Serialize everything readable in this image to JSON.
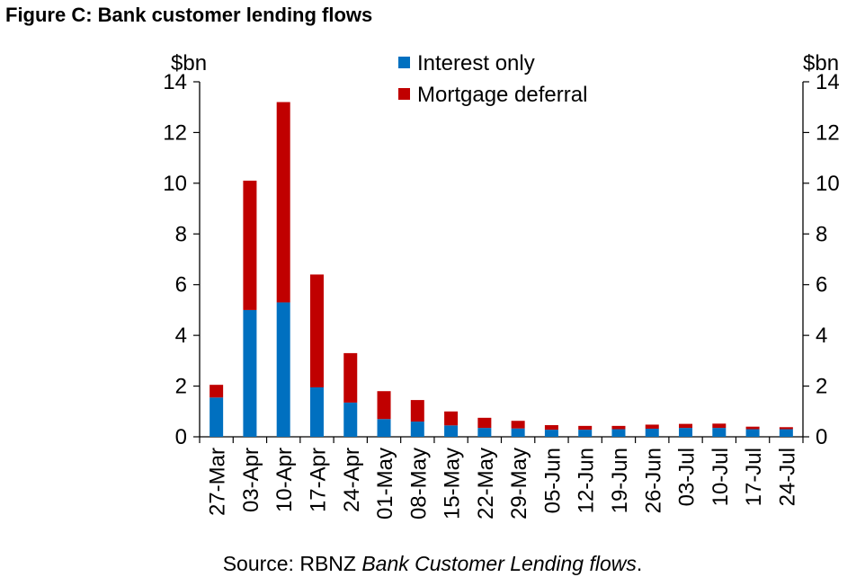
{
  "figure": {
    "title": "Figure C: Bank customer lending flows",
    "source_prefix": "Source: RBNZ ",
    "source_italic": "Bank Customer Lending flows",
    "source_suffix": "."
  },
  "chart_data": {
    "type": "bar",
    "stacked": true,
    "title": "Figure C: Bank customer lending flows",
    "left_axis_unit": "$bn",
    "right_axis_unit": "$bn",
    "ylim": [
      0,
      14
    ],
    "yticks": [
      0,
      2,
      4,
      6,
      8,
      10,
      12,
      14
    ],
    "legend_position": "top-center",
    "grid": false,
    "categories": [
      "27-Mar",
      "03-Apr",
      "10-Apr",
      "17-Apr",
      "24-Apr",
      "01-May",
      "08-May",
      "15-May",
      "22-May",
      "29-May",
      "05-Jun",
      "12-Jun",
      "19-Jun",
      "26-Jun",
      "03-Jul",
      "10-Jul",
      "17-Jul",
      "24-Jul"
    ],
    "series": [
      {
        "name": "Interest only",
        "color": "#0070C0",
        "values": [
          1.55,
          5.0,
          5.3,
          1.95,
          1.35,
          0.7,
          0.6,
          0.45,
          0.35,
          0.33,
          0.28,
          0.28,
          0.3,
          0.32,
          0.35,
          0.35,
          0.3,
          0.3
        ]
      },
      {
        "name": "Mortgage deferral",
        "color": "#C00000",
        "values": [
          0.5,
          5.1,
          7.9,
          4.45,
          1.95,
          1.1,
          0.85,
          0.55,
          0.4,
          0.3,
          0.18,
          0.15,
          0.13,
          0.16,
          0.16,
          0.17,
          0.1,
          0.08
        ]
      }
    ]
  }
}
